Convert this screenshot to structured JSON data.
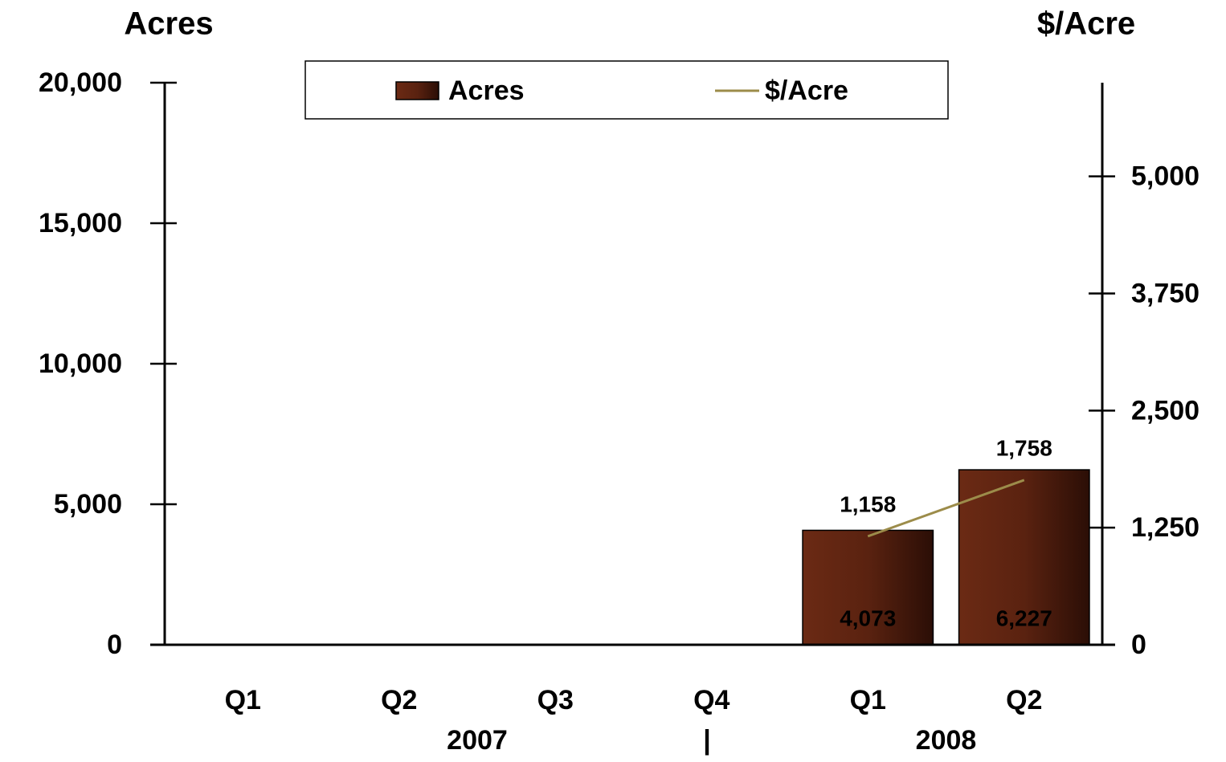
{
  "chart_data": {
    "type": "bar",
    "categories": [
      "Q1",
      "Q2",
      "Q3",
      "Q4",
      "Q1",
      "Q2"
    ],
    "x_groups": [
      "2007",
      "2008"
    ],
    "group_separator": "|",
    "ylabel": "Acres",
    "y2label": "$/Acre",
    "ylim": [
      0,
      20000
    ],
    "yticks": [
      0,
      {
        "value": 5000,
        "label": "5,000"
      },
      {
        "value": 10000,
        "label": "10,000"
      },
      {
        "value": 15000,
        "label": "15,000"
      },
      {
        "value": 20000,
        "label": "20,000"
      }
    ],
    "y2lim": [
      0,
      6000
    ],
    "y2ticks": [
      0,
      {
        "value": 1250,
        "label": "1,250"
      },
      {
        "value": 2500,
        "label": "2,500"
      },
      {
        "value": 3750,
        "label": "3,750"
      },
      {
        "value": 5000,
        "label": "5,000"
      }
    ],
    "legend": "top",
    "series": [
      {
        "name": "Acres",
        "type": "bar",
        "color": "#6b2a14",
        "values": [
          null,
          null,
          null,
          null,
          4073,
          6227
        ],
        "value_labels": [
          null,
          null,
          null,
          null,
          "4,073",
          "6,227"
        ]
      },
      {
        "name": "$/Acre",
        "type": "line",
        "axis": "y2",
        "color": "#9c8c4a",
        "values": [
          null,
          null,
          null,
          null,
          1158,
          1758
        ],
        "value_labels": [
          null,
          null,
          null,
          null,
          "1,158",
          "1,758"
        ]
      }
    ]
  }
}
